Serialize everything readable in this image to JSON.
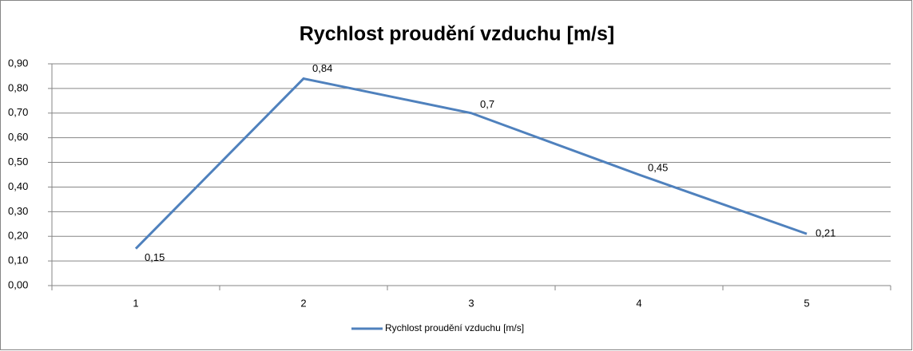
{
  "chart_data": {
    "type": "line",
    "title": "Rychlost proudění vzduchu [m/s]",
    "categories": [
      "1",
      "2",
      "3",
      "4",
      "5"
    ],
    "series": [
      {
        "name": "Rychlost proudění vzduchu [m/s]",
        "color": "#4f81bd",
        "values": [
          0.15,
          0.84,
          0.7,
          0.45,
          0.21
        ],
        "value_labels": [
          "0,15",
          "0,84",
          "0,7",
          "0,45",
          "0,21"
        ]
      }
    ],
    "ylim": [
      0,
      0.9
    ],
    "yticks": [
      {
        "value": 0,
        "label": "0,00"
      },
      {
        "value": 0.1,
        "label": "0,10"
      },
      {
        "value": 0.2,
        "label": "0,20"
      },
      {
        "value": 0.3,
        "label": "0,30"
      },
      {
        "value": 0.4,
        "label": "0,40"
      },
      {
        "value": 0.5,
        "label": "0,50"
      },
      {
        "value": 0.6,
        "label": "0,60"
      },
      {
        "value": 0.7,
        "label": "0,70"
      },
      {
        "value": 0.8,
        "label": "0,80"
      },
      {
        "value": 0.9,
        "label": "0,90"
      }
    ],
    "grid": true,
    "legend": "bottom"
  }
}
